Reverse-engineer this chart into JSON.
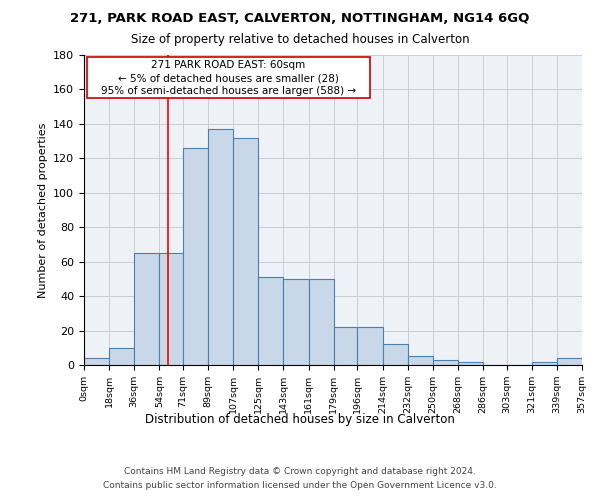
{
  "title1": "271, PARK ROAD EAST, CALVERTON, NOTTINGHAM, NG14 6GQ",
  "title2": "Size of property relative to detached houses in Calverton",
  "xlabel": "Distribution of detached houses by size in Calverton",
  "ylabel": "Number of detached properties",
  "bar_values": [
    4,
    10,
    65,
    65,
    126,
    137,
    132,
    51,
    50,
    50,
    22,
    22,
    12,
    5,
    3,
    2,
    0,
    0,
    2,
    4
  ],
  "bin_edges": [
    0,
    18,
    36,
    54,
    71,
    89,
    107,
    125,
    143,
    161,
    179,
    196,
    214,
    232,
    250,
    268,
    286,
    303,
    321,
    339,
    357
  ],
  "tick_labels": [
    "0sqm",
    "18sqm",
    "36sqm",
    "54sqm",
    "71sqm",
    "89sqm",
    "107sqm",
    "125sqm",
    "143sqm",
    "161sqm",
    "179sqm",
    "196sqm",
    "214sqm",
    "232sqm",
    "250sqm",
    "268sqm",
    "286sqm",
    "303sqm",
    "321sqm",
    "339sqm",
    "357sqm"
  ],
  "bar_color": "#c8d8e8",
  "bar_edgecolor": "#4a7faf",
  "grid_color": "#cccccc",
  "background_color": "#eef2f7",
  "annotation_box_color": "#ffffff",
  "annotation_border_color": "#cc0000",
  "property_line_x": 60,
  "annotation_text_line1": "271 PARK ROAD EAST: 60sqm",
  "annotation_text_line2": "← 5% of detached houses are smaller (28)",
  "annotation_text_line3": "95% of semi-detached houses are larger (588) →",
  "ylim": [
    0,
    180
  ],
  "yticks": [
    0,
    20,
    40,
    60,
    80,
    100,
    120,
    140,
    160,
    180
  ],
  "footer_line1": "Contains HM Land Registry data © Crown copyright and database right 2024.",
  "footer_line2": "Contains public sector information licensed under the Open Government Licence v3.0."
}
